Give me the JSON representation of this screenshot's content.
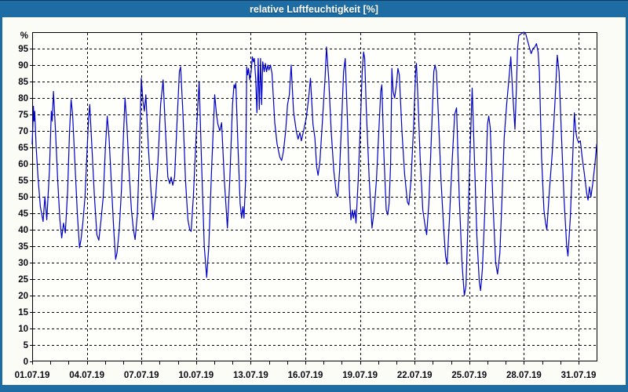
{
  "window": {
    "title": "relative Luftfeuchtigkeit [%]"
  },
  "colors": {
    "titlebar_bg": "#1d6da4",
    "titlebar_text": "#ffffff",
    "frame_edge": "#1d6da4",
    "window_bg": "#fcfcf7",
    "plot_bg": "#fefefb",
    "plot_border": "#000000",
    "grid": "#000000",
    "tick": "#000000",
    "label_text": "#0a0a14",
    "series_line": "#0000c6"
  },
  "chart_data": {
    "type": "line",
    "title": "relative Luftfeuchtigkeit [%]",
    "ylabel": "%",
    "y_unit_label": "%",
    "ylim": [
      0,
      100
    ],
    "y_ticks": [
      0,
      5,
      10,
      15,
      20,
      25,
      30,
      35,
      40,
      45,
      50,
      55,
      60,
      65,
      70,
      75,
      80,
      85,
      90,
      95
    ],
    "grid": "dashed",
    "legend_position": "none",
    "x_axis": {
      "domain_days": [
        1,
        32.03
      ],
      "tick_labels": [
        "01.07.19",
        "04.07.19",
        "07.07.19",
        "10.07.19",
        "13.07.19",
        "16.07.19",
        "19.07.19",
        "22.07.19",
        "25.07.19",
        "28.07.19",
        "31.07.19"
      ],
      "label_days": [
        1,
        4,
        7,
        10,
        13,
        16,
        19,
        22,
        25,
        28,
        31
      ],
      "gridline_days": [
        4,
        7,
        10,
        13,
        16,
        19,
        22,
        25,
        28,
        31
      ],
      "minor_tick_days": [
        1,
        2,
        3,
        4,
        5,
        6,
        7,
        8,
        9,
        10,
        11,
        12,
        13,
        14,
        15,
        16,
        17,
        18,
        19,
        20,
        21,
        22,
        23,
        24,
        25,
        26,
        27,
        28,
        29,
        30,
        31
      ]
    },
    "series": [
      {
        "name": "relative Luftfeuchtigkeit",
        "unit": "%",
        "color": "#0000c6",
        "points": [
          [
            1.0,
            66
          ],
          [
            1.04,
            72
          ],
          [
            1.07,
            77.5
          ],
          [
            1.1,
            73
          ],
          [
            1.14,
            76
          ],
          [
            1.22,
            65
          ],
          [
            1.32,
            56
          ],
          [
            1.45,
            47
          ],
          [
            1.6,
            42.5
          ],
          [
            1.7,
            50
          ],
          [
            1.8,
            43
          ],
          [
            1.95,
            58
          ],
          [
            2.05,
            76
          ],
          [
            2.1,
            73
          ],
          [
            2.17,
            82
          ],
          [
            2.28,
            70
          ],
          [
            2.4,
            55
          ],
          [
            2.52,
            43
          ],
          [
            2.62,
            37.5
          ],
          [
            2.72,
            42
          ],
          [
            2.82,
            39
          ],
          [
            2.95,
            52
          ],
          [
            3.05,
            70
          ],
          [
            3.14,
            79.5
          ],
          [
            3.22,
            75
          ],
          [
            3.35,
            60
          ],
          [
            3.48,
            45
          ],
          [
            3.6,
            34.5
          ],
          [
            3.68,
            37
          ],
          [
            3.78,
            42
          ],
          [
            3.9,
            50
          ],
          [
            4.02,
            65
          ],
          [
            4.1,
            74
          ],
          [
            4.16,
            78
          ],
          [
            4.28,
            65
          ],
          [
            4.42,
            50
          ],
          [
            4.55,
            38.5
          ],
          [
            4.66,
            36.8
          ],
          [
            4.78,
            43
          ],
          [
            4.9,
            50
          ],
          [
            5.02,
            65
          ],
          [
            5.12,
            74.5
          ],
          [
            5.22,
            68
          ],
          [
            5.35,
            54
          ],
          [
            5.48,
            40
          ],
          [
            5.58,
            31
          ],
          [
            5.66,
            33
          ],
          [
            5.78,
            40
          ],
          [
            5.9,
            52
          ],
          [
            6.02,
            70
          ],
          [
            6.1,
            80
          ],
          [
            6.2,
            72
          ],
          [
            6.32,
            58
          ],
          [
            6.45,
            46
          ],
          [
            6.56,
            40
          ],
          [
            6.65,
            37
          ],
          [
            6.78,
            45
          ],
          [
            6.88,
            62
          ],
          [
            6.99,
            86
          ],
          [
            7.08,
            79
          ],
          [
            7.16,
            76
          ],
          [
            7.24,
            81
          ],
          [
            7.38,
            65
          ],
          [
            7.52,
            52
          ],
          [
            7.64,
            43
          ],
          [
            7.78,
            50
          ],
          [
            7.9,
            60
          ],
          [
            8.05,
            78
          ],
          [
            8.19,
            85.5
          ],
          [
            8.32,
            70
          ],
          [
            8.45,
            56
          ],
          [
            8.55,
            54
          ],
          [
            8.63,
            56
          ],
          [
            8.72,
            53.5
          ],
          [
            8.82,
            56
          ],
          [
            8.95,
            72
          ],
          [
            9.08,
            88
          ],
          [
            9.15,
            89.5
          ],
          [
            9.28,
            75
          ],
          [
            9.42,
            55
          ],
          [
            9.55,
            43
          ],
          [
            9.65,
            40
          ],
          [
            9.73,
            39.5
          ],
          [
            9.85,
            50
          ],
          [
            10.0,
            68
          ],
          [
            10.17,
            85
          ],
          [
            10.3,
            60
          ],
          [
            10.45,
            35
          ],
          [
            10.58,
            25.5
          ],
          [
            10.7,
            35
          ],
          [
            10.85,
            58
          ],
          [
            11.02,
            81
          ],
          [
            11.12,
            75
          ],
          [
            11.2,
            72
          ],
          [
            11.3,
            70
          ],
          [
            11.4,
            72.5
          ],
          [
            11.55,
            55
          ],
          [
            11.72,
            40.5
          ],
          [
            11.85,
            55
          ],
          [
            12.0,
            78
          ],
          [
            12.08,
            84
          ],
          [
            12.13,
            83
          ],
          [
            12.18,
            84.5
          ],
          [
            12.3,
            65
          ],
          [
            12.42,
            48
          ],
          [
            12.5,
            43.5
          ],
          [
            12.57,
            47
          ],
          [
            12.63,
            43.5
          ],
          [
            12.72,
            55
          ],
          [
            12.78,
            89.5
          ],
          [
            12.83,
            87
          ],
          [
            12.88,
            89
          ],
          [
            12.95,
            85.5
          ],
          [
            13.02,
            88
          ],
          [
            13.09,
            92.5
          ],
          [
            13.15,
            91
          ],
          [
            13.2,
            92
          ],
          [
            13.27,
            86
          ],
          [
            13.34,
            75.5
          ],
          [
            13.41,
            92
          ],
          [
            13.47,
            76.5
          ],
          [
            13.54,
            92
          ],
          [
            13.6,
            78
          ],
          [
            13.66,
            91
          ],
          [
            13.74,
            88
          ],
          [
            13.8,
            90.5
          ],
          [
            13.87,
            88
          ],
          [
            13.94,
            90
          ],
          [
            14.0,
            88.5
          ],
          [
            14.08,
            90
          ],
          [
            14.17,
            87.5
          ],
          [
            14.32,
            72.5
          ],
          [
            14.45,
            66
          ],
          [
            14.6,
            62
          ],
          [
            14.7,
            61
          ],
          [
            14.8,
            64
          ],
          [
            14.92,
            70
          ],
          [
            15.02,
            78
          ],
          [
            15.12,
            81
          ],
          [
            15.22,
            90
          ],
          [
            15.35,
            76
          ],
          [
            15.5,
            70
          ],
          [
            15.6,
            67.5
          ],
          [
            15.7,
            69.5
          ],
          [
            15.78,
            67
          ],
          [
            15.9,
            70
          ],
          [
            16.05,
            74
          ],
          [
            16.18,
            80
          ],
          [
            16.28,
            86
          ],
          [
            16.42,
            72
          ],
          [
            16.52,
            68
          ],
          [
            16.62,
            59
          ],
          [
            16.7,
            56.5
          ],
          [
            16.8,
            61
          ],
          [
            16.95,
            74
          ],
          [
            17.08,
            86
          ],
          [
            17.16,
            95.5
          ],
          [
            17.28,
            86
          ],
          [
            17.42,
            70
          ],
          [
            17.56,
            58
          ],
          [
            17.7,
            51
          ],
          [
            17.78,
            50
          ],
          [
            17.88,
            58
          ],
          [
            18.0,
            74
          ],
          [
            18.1,
            88
          ],
          [
            18.19,
            92
          ],
          [
            18.32,
            72
          ],
          [
            18.42,
            52
          ],
          [
            18.5,
            43
          ],
          [
            18.58,
            46
          ],
          [
            18.64,
            43.5
          ],
          [
            18.72,
            46
          ],
          [
            18.78,
            42
          ],
          [
            18.9,
            55
          ],
          [
            19.02,
            72
          ],
          [
            19.12,
            88
          ],
          [
            19.2,
            94
          ],
          [
            19.26,
            92
          ],
          [
            19.35,
            76
          ],
          [
            19.5,
            56
          ],
          [
            19.66,
            40.5
          ],
          [
            19.78,
            46
          ],
          [
            19.9,
            55
          ],
          [
            20.05,
            72
          ],
          [
            20.14,
            82
          ],
          [
            20.2,
            84
          ],
          [
            20.32,
            62
          ],
          [
            20.44,
            46
          ],
          [
            20.52,
            44.5
          ],
          [
            20.6,
            48
          ],
          [
            20.68,
            60
          ],
          [
            20.75,
            89
          ],
          [
            20.82,
            82
          ],
          [
            20.9,
            80
          ],
          [
            21.0,
            84
          ],
          [
            21.08,
            89
          ],
          [
            21.16,
            87
          ],
          [
            21.3,
            70
          ],
          [
            21.45,
            57
          ],
          [
            21.6,
            48.5
          ],
          [
            21.68,
            47.5
          ],
          [
            21.8,
            55
          ],
          [
            21.95,
            72
          ],
          [
            22.05,
            88
          ],
          [
            22.1,
            90.5
          ],
          [
            22.18,
            80
          ],
          [
            22.3,
            62
          ],
          [
            22.45,
            46
          ],
          [
            22.58,
            41
          ],
          [
            22.66,
            38.5
          ],
          [
            22.78,
            48
          ],
          [
            22.92,
            68
          ],
          [
            23.05,
            88
          ],
          [
            23.12,
            90
          ],
          [
            23.2,
            88
          ],
          [
            23.3,
            75
          ],
          [
            23.45,
            55
          ],
          [
            23.6,
            40
          ],
          [
            23.7,
            32
          ],
          [
            23.78,
            29.5
          ],
          [
            23.9,
            42
          ],
          [
            24.05,
            60
          ],
          [
            24.2,
            75
          ],
          [
            24.3,
            77
          ],
          [
            24.45,
            50
          ],
          [
            24.6,
            30
          ],
          [
            24.73,
            20
          ],
          [
            24.82,
            23
          ],
          [
            24.92,
            40
          ],
          [
            25.05,
            65
          ],
          [
            25.16,
            83
          ],
          [
            25.28,
            62
          ],
          [
            25.42,
            38
          ],
          [
            25.55,
            24
          ],
          [
            25.62,
            21.5
          ],
          [
            25.72,
            28
          ],
          [
            25.85,
            45
          ],
          [
            26.0,
            72
          ],
          [
            26.07,
            74.5
          ],
          [
            26.15,
            71
          ],
          [
            26.3,
            48
          ],
          [
            26.45,
            30
          ],
          [
            26.55,
            26.5
          ],
          [
            26.68,
            33
          ],
          [
            26.8,
            50
          ],
          [
            26.92,
            68
          ],
          [
            27.05,
            78
          ],
          [
            27.18,
            86
          ],
          [
            27.28,
            92.5
          ],
          [
            27.38,
            82
          ],
          [
            27.51,
            70.5
          ],
          [
            27.58,
            82
          ],
          [
            27.65,
            95
          ],
          [
            27.72,
            99
          ],
          [
            27.85,
            99.5
          ],
          [
            28.0,
            100
          ],
          [
            28.1,
            99.5
          ],
          [
            28.22,
            97
          ],
          [
            28.32,
            95
          ],
          [
            28.4,
            93.5
          ],
          [
            28.5,
            95
          ],
          [
            28.6,
            95.5
          ],
          [
            28.69,
            96.5
          ],
          [
            28.78,
            94
          ],
          [
            28.85,
            88
          ],
          [
            28.97,
            62
          ],
          [
            29.1,
            46
          ],
          [
            29.19,
            42
          ],
          [
            29.26,
            40
          ],
          [
            29.4,
            52
          ],
          [
            29.55,
            63
          ],
          [
            29.7,
            78
          ],
          [
            29.83,
            93
          ],
          [
            29.93,
            88
          ],
          [
            30.05,
            70
          ],
          [
            30.2,
            50
          ],
          [
            30.35,
            35
          ],
          [
            30.42,
            32
          ],
          [
            30.55,
            44
          ],
          [
            30.65,
            58
          ],
          [
            30.72,
            68
          ],
          [
            30.77,
            75.5
          ],
          [
            30.85,
            70
          ],
          [
            30.9,
            68
          ],
          [
            31.0,
            66.5
          ],
          [
            31.1,
            67
          ],
          [
            31.2,
            62
          ],
          [
            31.32,
            57
          ],
          [
            31.45,
            51
          ],
          [
            31.52,
            49
          ],
          [
            31.6,
            53
          ],
          [
            31.68,
            50
          ],
          [
            31.78,
            54
          ],
          [
            31.9,
            60
          ],
          [
            32.0,
            66
          ]
        ]
      }
    ]
  }
}
